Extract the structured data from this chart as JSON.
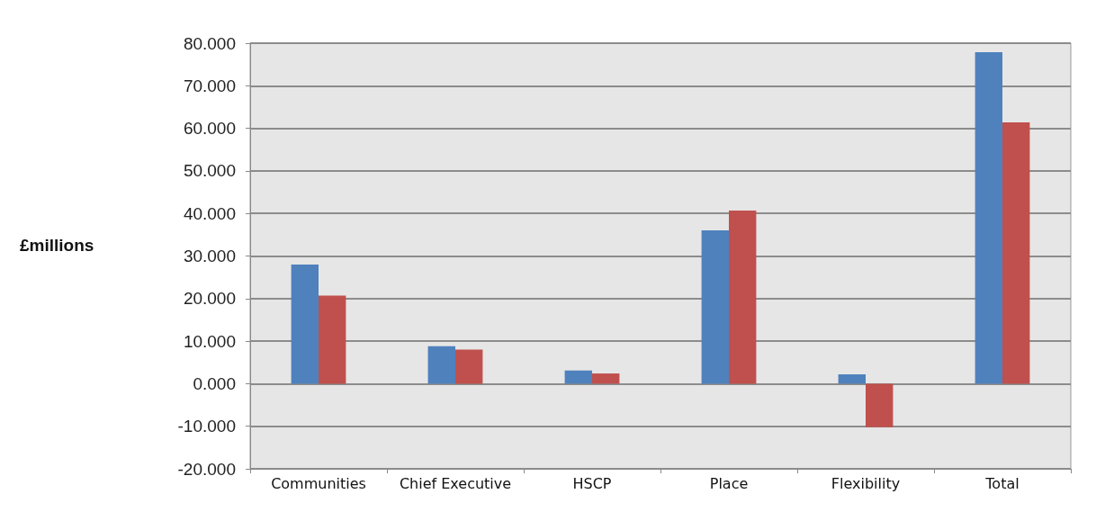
{
  "chart_data": {
    "type": "bar",
    "ylabel": "£millions",
    "categories": [
      "Communities",
      "Chief Executive",
      "HSCP",
      "Place",
      "Flexibility",
      "Total"
    ],
    "series": [
      {
        "color": "#4f81bd",
        "values": [
          28.0,
          8.8,
          3.1,
          36.0,
          2.2,
          77.9
        ]
      },
      {
        "color": "#c0504d",
        "values": [
          20.7,
          8.0,
          2.4,
          40.7,
          -10.2,
          61.4
        ]
      }
    ],
    "ylim": [
      -20,
      80
    ],
    "yticks": [
      {
        "value": -20,
        "label": "-20.000"
      },
      {
        "value": -10,
        "label": "-10.000"
      },
      {
        "value": 0,
        "label": "0.000"
      },
      {
        "value": 10,
        "label": "10.000"
      },
      {
        "value": 20,
        "label": "20.000"
      },
      {
        "value": 30,
        "label": "30.000"
      },
      {
        "value": 40,
        "label": "40.000"
      },
      {
        "value": 50,
        "label": "50.000"
      },
      {
        "value": 60,
        "label": "60.000"
      },
      {
        "value": 70,
        "label": "70.000"
      },
      {
        "value": 80,
        "label": "80.000"
      }
    ],
    "grid": "y"
  }
}
